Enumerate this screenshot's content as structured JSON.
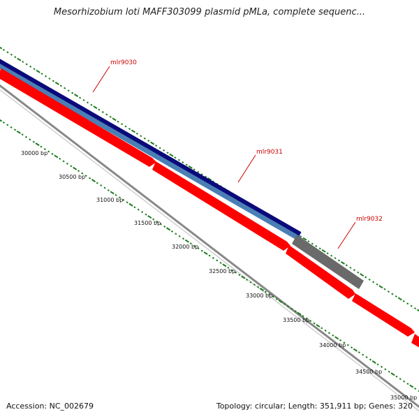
{
  "title": "Mesorhizobium loti MAFF303099 plasmid pMLa, complete sequenc...",
  "colors": {
    "forward_strand": "#0a0a7a",
    "forward_strand_light": "#4a7fb5",
    "reverse_cds": "#ff0000",
    "other_feature": "#666666",
    "backbone": "#808080",
    "ticks": "#1a7a1a",
    "gene_label": "#cc0000"
  },
  "position_labels": [
    "30000 bp",
    "30500 bp",
    "31000 bp",
    "31500 bp",
    "32000 bp",
    "32500 bp",
    "33000 bp",
    "33500 bp",
    "34000 bp",
    "34500 bp",
    "35000 bp"
  ],
  "genes": [
    {
      "name": "mlr9030",
      "strand": "forward"
    },
    {
      "name": "mlr9031",
      "strand": "forward"
    },
    {
      "name": "mlr9032",
      "strand": "forward"
    }
  ],
  "footer": {
    "accession": "Accession: NC_002679",
    "summary": "Topology: circular; Length: 351,911 bp; Genes: 320"
  }
}
